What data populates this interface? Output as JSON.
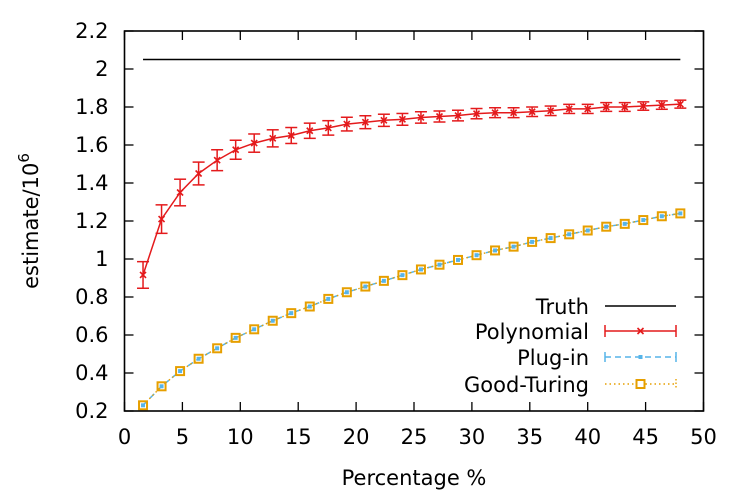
{
  "chart_data": {
    "type": "line",
    "title": "",
    "xlabel": "Percentage %",
    "ylabel": "estimate/10",
    "ylabel_sup": "6",
    "xlim": [
      0,
      50
    ],
    "ylim": [
      0.2,
      2.2
    ],
    "xticks": [
      0,
      5,
      10,
      15,
      20,
      25,
      30,
      35,
      40,
      45,
      50
    ],
    "yticks": [
      0.2,
      0.4,
      0.6,
      0.8,
      1,
      1.2,
      1.4,
      1.6,
      1.8,
      2,
      2.2
    ],
    "ytick_labels": [
      "0.2",
      "0.4",
      "0.6",
      "0.8",
      "1",
      "1.2",
      "1.4",
      "1.6",
      "1.8",
      "2",
      "2.2"
    ],
    "grid": false,
    "legend_position": "lower right",
    "x": [
      1.6,
      3.2,
      4.8,
      6.4,
      8.0,
      9.6,
      11.2,
      12.8,
      14.4,
      16.0,
      17.6,
      19.2,
      20.8,
      22.4,
      24.0,
      25.6,
      27.2,
      28.8,
      30.4,
      32.0,
      33.6,
      35.2,
      36.8,
      38.4,
      40.0,
      41.6,
      43.2,
      44.8,
      46.4,
      48.0
    ],
    "series": [
      {
        "name": "Truth",
        "style": "solid",
        "color": "#000000",
        "values": [
          2.05,
          2.05,
          2.05,
          2.05,
          2.05,
          2.05,
          2.05,
          2.05,
          2.05,
          2.05,
          2.05,
          2.05,
          2.05,
          2.05,
          2.05,
          2.05,
          2.05,
          2.05,
          2.05,
          2.05,
          2.05,
          2.05,
          2.05,
          2.05,
          2.05,
          2.05,
          2.05,
          2.05,
          2.05,
          2.05
        ]
      },
      {
        "name": "Polynomial",
        "style": "solid-errorbars",
        "color": "#e41a1c",
        "marker": "x",
        "values": [
          0.916,
          1.21,
          1.35,
          1.45,
          1.52,
          1.575,
          1.61,
          1.635,
          1.65,
          1.675,
          1.69,
          1.71,
          1.72,
          1.73,
          1.735,
          1.745,
          1.75,
          1.755,
          1.765,
          1.77,
          1.77,
          1.775,
          1.78,
          1.79,
          1.79,
          1.8,
          1.8,
          1.805,
          1.81,
          1.815
        ],
        "errors": [
          0.07,
          0.075,
          0.07,
          0.06,
          0.055,
          0.05,
          0.048,
          0.045,
          0.042,
          0.04,
          0.038,
          0.036,
          0.034,
          0.032,
          0.031,
          0.03,
          0.029,
          0.028,
          0.027,
          0.026,
          0.026,
          0.025,
          0.025,
          0.024,
          0.024,
          0.023,
          0.023,
          0.022,
          0.022,
          0.021
        ]
      },
      {
        "name": "Plug-in",
        "style": "dashed",
        "color": "#56b4e9",
        "marker": "filled-square",
        "values": [
          0.23,
          0.33,
          0.41,
          0.475,
          0.53,
          0.585,
          0.63,
          0.675,
          0.715,
          0.75,
          0.79,
          0.825,
          0.855,
          0.885,
          0.915,
          0.945,
          0.97,
          0.995,
          1.02,
          1.045,
          1.065,
          1.09,
          1.11,
          1.13,
          1.15,
          1.17,
          1.185,
          1.205,
          1.225,
          1.24
        ]
      },
      {
        "name": "Good-Turing",
        "style": "dotted",
        "color": "#e69f00",
        "marker": "open-square",
        "values": [
          0.23,
          0.33,
          0.41,
          0.475,
          0.53,
          0.585,
          0.63,
          0.675,
          0.715,
          0.75,
          0.79,
          0.825,
          0.855,
          0.885,
          0.915,
          0.945,
          0.97,
          0.995,
          1.02,
          1.045,
          1.065,
          1.09,
          1.11,
          1.13,
          1.15,
          1.17,
          1.185,
          1.205,
          1.225,
          1.24
        ]
      }
    ]
  }
}
